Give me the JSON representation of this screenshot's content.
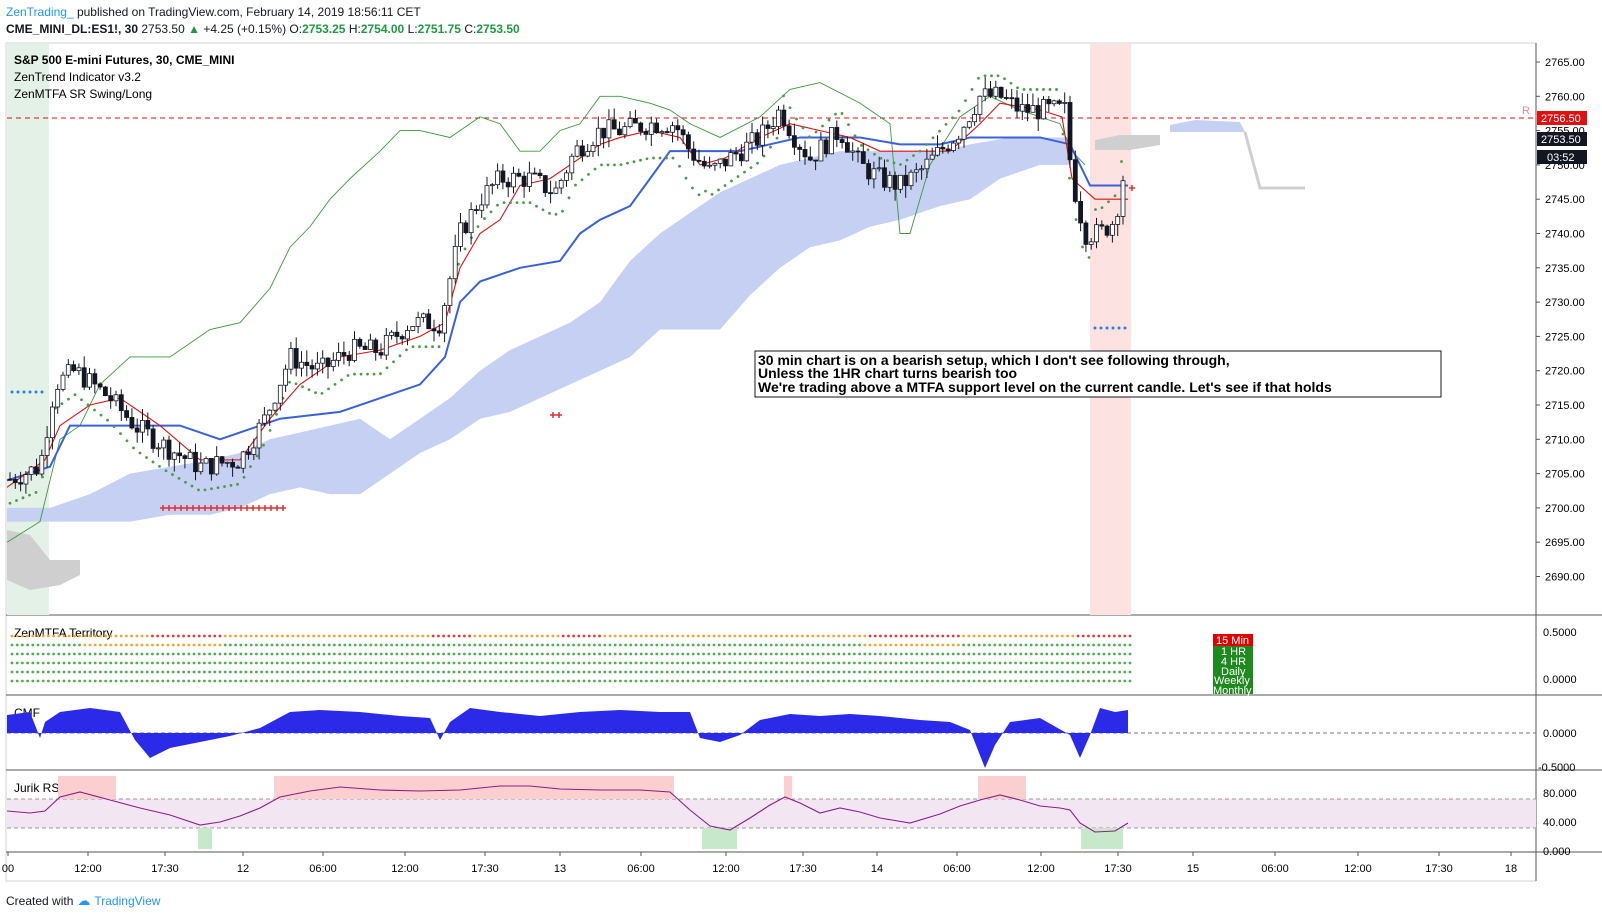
{
  "header": {
    "author": "ZenTrading_",
    "published": "published on TradingView.com, February 14, 2019 18:56:11 CET",
    "symbol": "CME_MINI_DL:ES1!, 30",
    "last": "2753.50",
    "change": "+4.25 (+0.15%)",
    "open_label": "O:",
    "open": "2753.25",
    "high_label": "H:",
    "high": "2754.00",
    "low_label": "L:",
    "low": "2751.75",
    "close_label": "C:",
    "close": "2753.50"
  },
  "main_pane": {
    "title": "S&P 500 E-mini Futures, 30, CME_MINI",
    "indicators": [
      "ZenTrend Indicator v3.2",
      "ZenMTFA SR Swing/Long"
    ],
    "price_axis": [
      "2765.00",
      "2760.00",
      "2755.00",
      "2750.00",
      "2745.00",
      "2740.00",
      "2735.00",
      "2730.00",
      "2725.00",
      "2720.00",
      "2715.00",
      "2710.00",
      "2705.00",
      "2700.00",
      "2695.00",
      "2690.00"
    ],
    "resistance_tag": "2756.50",
    "price_tag": "2753.50",
    "timer_tag": "03:52",
    "r_label": "R",
    "annotation": [
      "30 min chart is on a bearish setup, which I don't see following through,",
      "Unless the 1HR chart turns bearish too",
      "We're trading above a MTFA support level on the current candle. Let's see if that holds"
    ]
  },
  "territory_pane": {
    "title": "ZenMTFA Territory",
    "axis": [
      "0.5000",
      "0.0000"
    ],
    "legend": [
      {
        "label": "15 Min",
        "color": "#e00000"
      },
      {
        "label": "1 HR",
        "color": "#1e8a1e"
      },
      {
        "label": "4 HR",
        "color": "#1e8a1e"
      },
      {
        "label": "Daily",
        "color": "#1e8a1e"
      },
      {
        "label": "Weekly",
        "color": "#1e8a1e"
      },
      {
        "label": "Monthly",
        "color": "#1e8a1e"
      }
    ]
  },
  "cmf_pane": {
    "title": "CMF",
    "axis": [
      "0.0000",
      "-0.5000"
    ]
  },
  "rsx_pane": {
    "title": "Jurik RSX",
    "axis": [
      "80.000",
      "40.000",
      "0.000"
    ]
  },
  "time_axis": [
    "00",
    "12:00",
    "17:30",
    "12",
    "06:00",
    "12:00",
    "17:30",
    "13",
    "06:00",
    "12:00",
    "17:30",
    "14",
    "06:00",
    "12:00",
    "17:30",
    "15",
    "06:00",
    "12:00",
    "17:30",
    "18"
  ],
  "footer": {
    "created": "Created with",
    "brand": "TradingView"
  },
  "colors": {
    "cloud": "#c5d0f3",
    "kijun": "#3a62d8",
    "tenkan": "#e01010",
    "chikou": "#3a9a3a",
    "dots": "#4c9a4c",
    "cmf": "#2a2ae8",
    "rsx": "#8a1e8a",
    "resistance": "#e01010"
  }
}
